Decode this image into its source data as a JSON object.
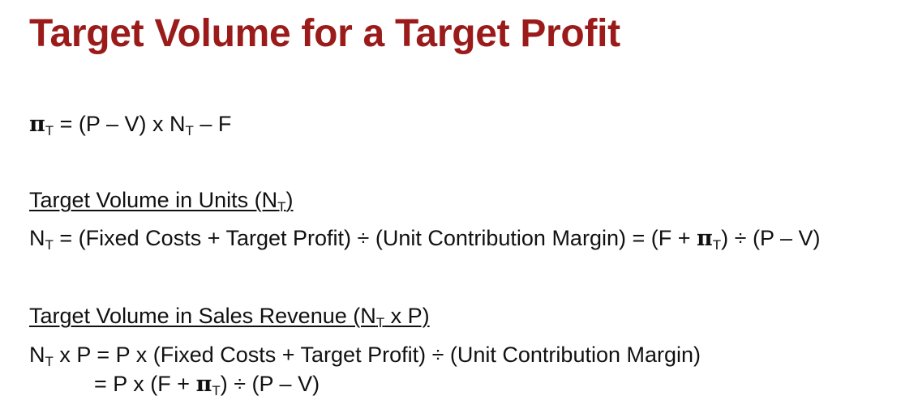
{
  "title": "Target Volume for a Target Profit",
  "symbols": {
    "pi": "π",
    "N": "N",
    "T": "T"
  },
  "formula": {
    "rest": " = (P – V) x N",
    "tail": " – F"
  },
  "units_section": {
    "heading_text": "Target Volume in Units (N",
    "heading_close": ")",
    "formula_part1": " = (Fixed Costs + Target Profit) ÷ (Unit Contribution Margin) = (F + ",
    "formula_part2": ") ÷ (P – V)"
  },
  "revenue_section": {
    "heading_text": "Target Volume in Sales Revenue (N",
    "heading_close": " x P)",
    "line1_rest": " x P = P x (Fixed Costs + Target Profit) ÷ (Unit Contribution Margin)",
    "line2_part1": "= P x (F + ",
    "line2_part2": ") ÷ (P – V)"
  }
}
